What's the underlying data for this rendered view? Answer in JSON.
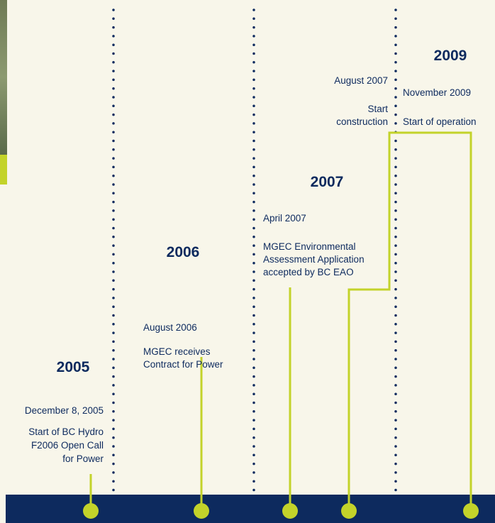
{
  "events": [
    {
      "year": "2005",
      "date": "December 8, 2005",
      "description": [
        "Start of BC Hydro",
        "F2006 Open Call",
        "for Power"
      ]
    },
    {
      "year": "2006",
      "date": "August 2006",
      "description": [
        "MGEC receives",
        "Contract for Power"
      ]
    },
    {
      "year": "2007",
      "date": "April 2007",
      "description": [
        "MGEC Environmental",
        "Assessment Application",
        "accepted by BC EAO"
      ]
    },
    {
      "date": "August 2007",
      "description": [
        "Start",
        "construction"
      ]
    },
    {
      "year": "2009",
      "date": "November 2009",
      "description": [
        "Start of operation"
      ]
    }
  ]
}
